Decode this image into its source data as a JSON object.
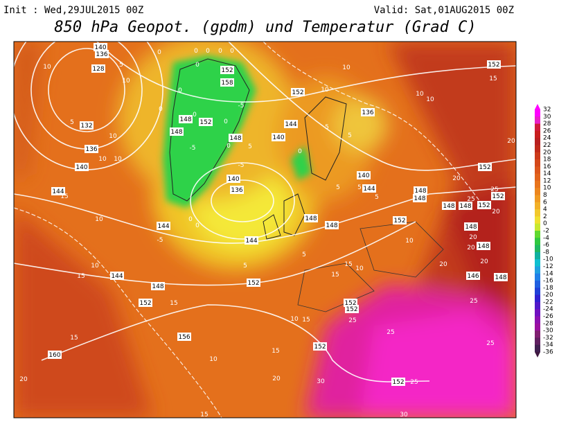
{
  "header": {
    "init": "Init : Wed,29JUL2015 00Z",
    "valid": "Valid: Sat,01AUG2015 00Z",
    "title": "850 hPa Geopot. (gpdm) und Temperatur (Grad C)"
  },
  "colorbar": {
    "labels": [
      32,
      30,
      28,
      26,
      24,
      22,
      20,
      18,
      16,
      14,
      12,
      10,
      8,
      6,
      4,
      2,
      0,
      -2,
      -4,
      -6,
      -8,
      -10,
      -12,
      -14,
      -16,
      -18,
      -20,
      -22,
      -24,
      -26,
      -28,
      -30,
      -32,
      -34,
      -36
    ]
  },
  "map": {
    "labels": [
      140,
      136,
      128,
      5,
      10,
      10,
      5,
      132,
      10,
      136,
      140,
      10,
      10,
      144,
      15,
      10,
      0,
      0,
      0,
      0,
      0,
      152,
      158,
      0,
      0,
      -5,
      0,
      148,
      0,
      152,
      148,
      -5,
      0,
      148,
      0,
      5,
      140,
      0,
      144,
      152,
      10,
      5,
      136,
      5,
      10,
      10,
      10,
      152,
      15,
      -5,
      140,
      136,
      0,
      0,
      144,
      -5,
      144,
      5,
      148,
      152,
      140,
      5,
      5,
      144,
      5,
      148,
      148,
      10,
      152,
      15,
      148,
      5,
      10,
      15,
      144,
      148,
      152,
      15,
      15,
      10,
      15,
      152,
      152,
      25,
      10,
      15,
      156,
      10,
      15,
      160,
      15,
      152,
      25,
      20,
      30,
      152,
      25,
      20,
      15,
      30,
      20,
      25,
      25,
      152,
      20,
      148,
      148,
      152,
      148,
      20,
      20,
      148,
      20,
      20,
      146,
      148,
      25,
      25,
      152,
      20
    ]
  }
}
